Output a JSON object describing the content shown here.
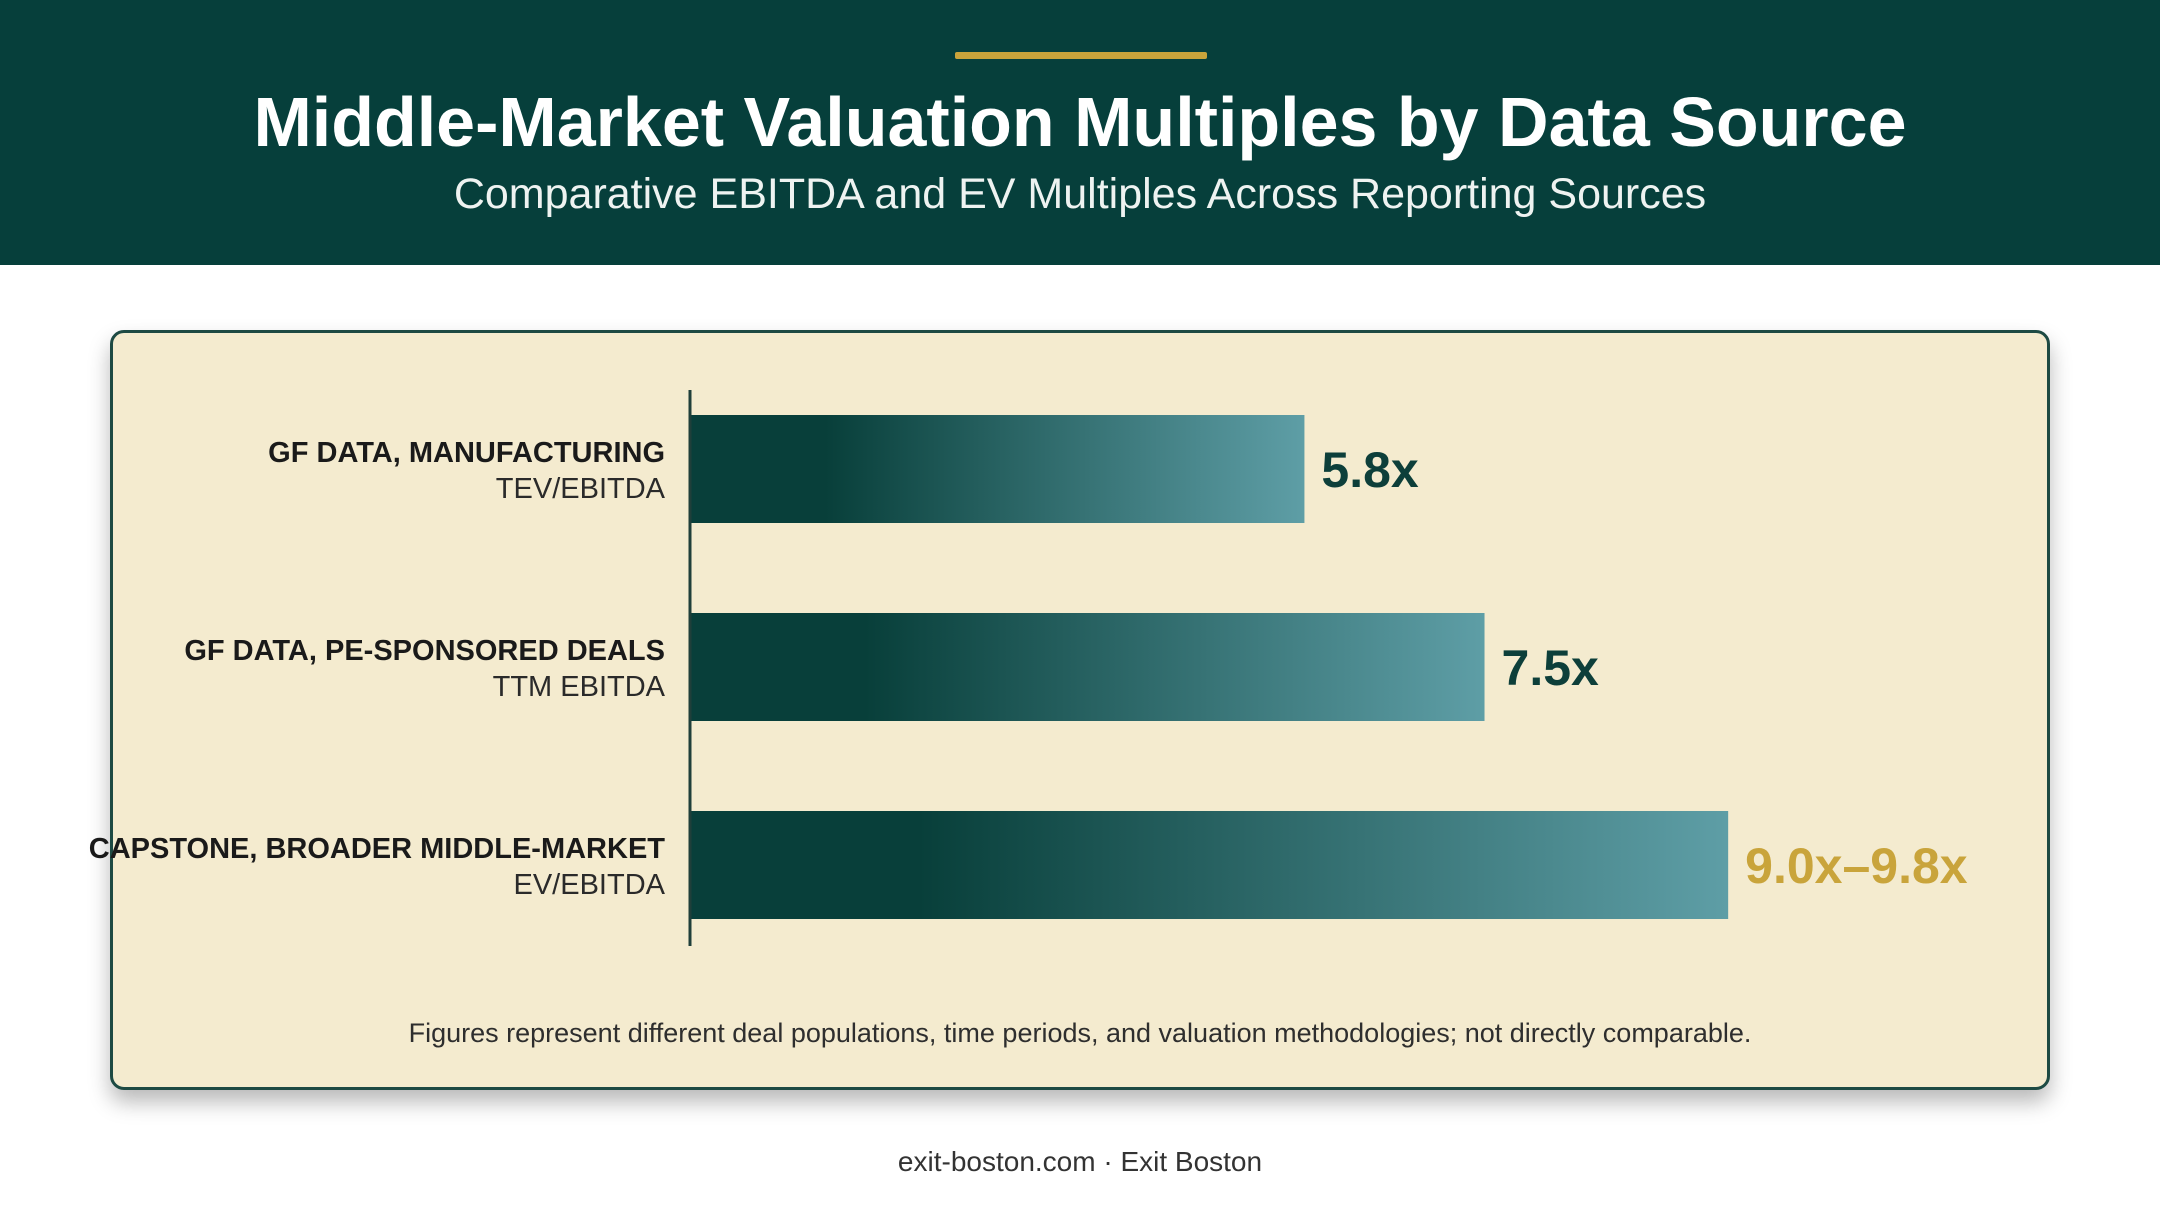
{
  "header": {
    "title": "Middle-Market Valuation Multiples by Data Source",
    "subtitle": "Comparative EBITDA and EV Multiples Across Reporting Sources"
  },
  "colors": {
    "header_bg": "#063f3b",
    "accent_gold": "#c9a43b",
    "card_bg": "#f4ebcf",
    "bar_dark": "#083f3a",
    "bar_light": "#5e9ea6",
    "value_text": "#0d3f3a"
  },
  "chart_data": {
    "type": "bar",
    "orientation": "horizontal",
    "categories": [
      {
        "name": "GF DATA, MANUFACTURING",
        "metric": "TEV/EBITDA"
      },
      {
        "name": "GF DATA, PE-SPONSORED DEALS",
        "metric": "TTM EBITDA"
      },
      {
        "name": "CAPSTONE, BROADER MIDDLE-MARKET",
        "metric": "EV/EBITDA"
      }
    ],
    "values": [
      5.8,
      7.5,
      9.8
    ],
    "ranges": [
      null,
      null,
      [
        9.0,
        9.8
      ]
    ],
    "value_labels": [
      "5.8x",
      "7.5x",
      "9.0x–9.8x"
    ],
    "highlight_index": 2,
    "xlim": [
      0,
      10.95
    ],
    "grid": false,
    "legend": "none"
  },
  "footnote": "Figures represent different deal populations, time periods, and valuation methodologies; not directly comparable.",
  "footer": "exit-boston.com · Exit Boston"
}
